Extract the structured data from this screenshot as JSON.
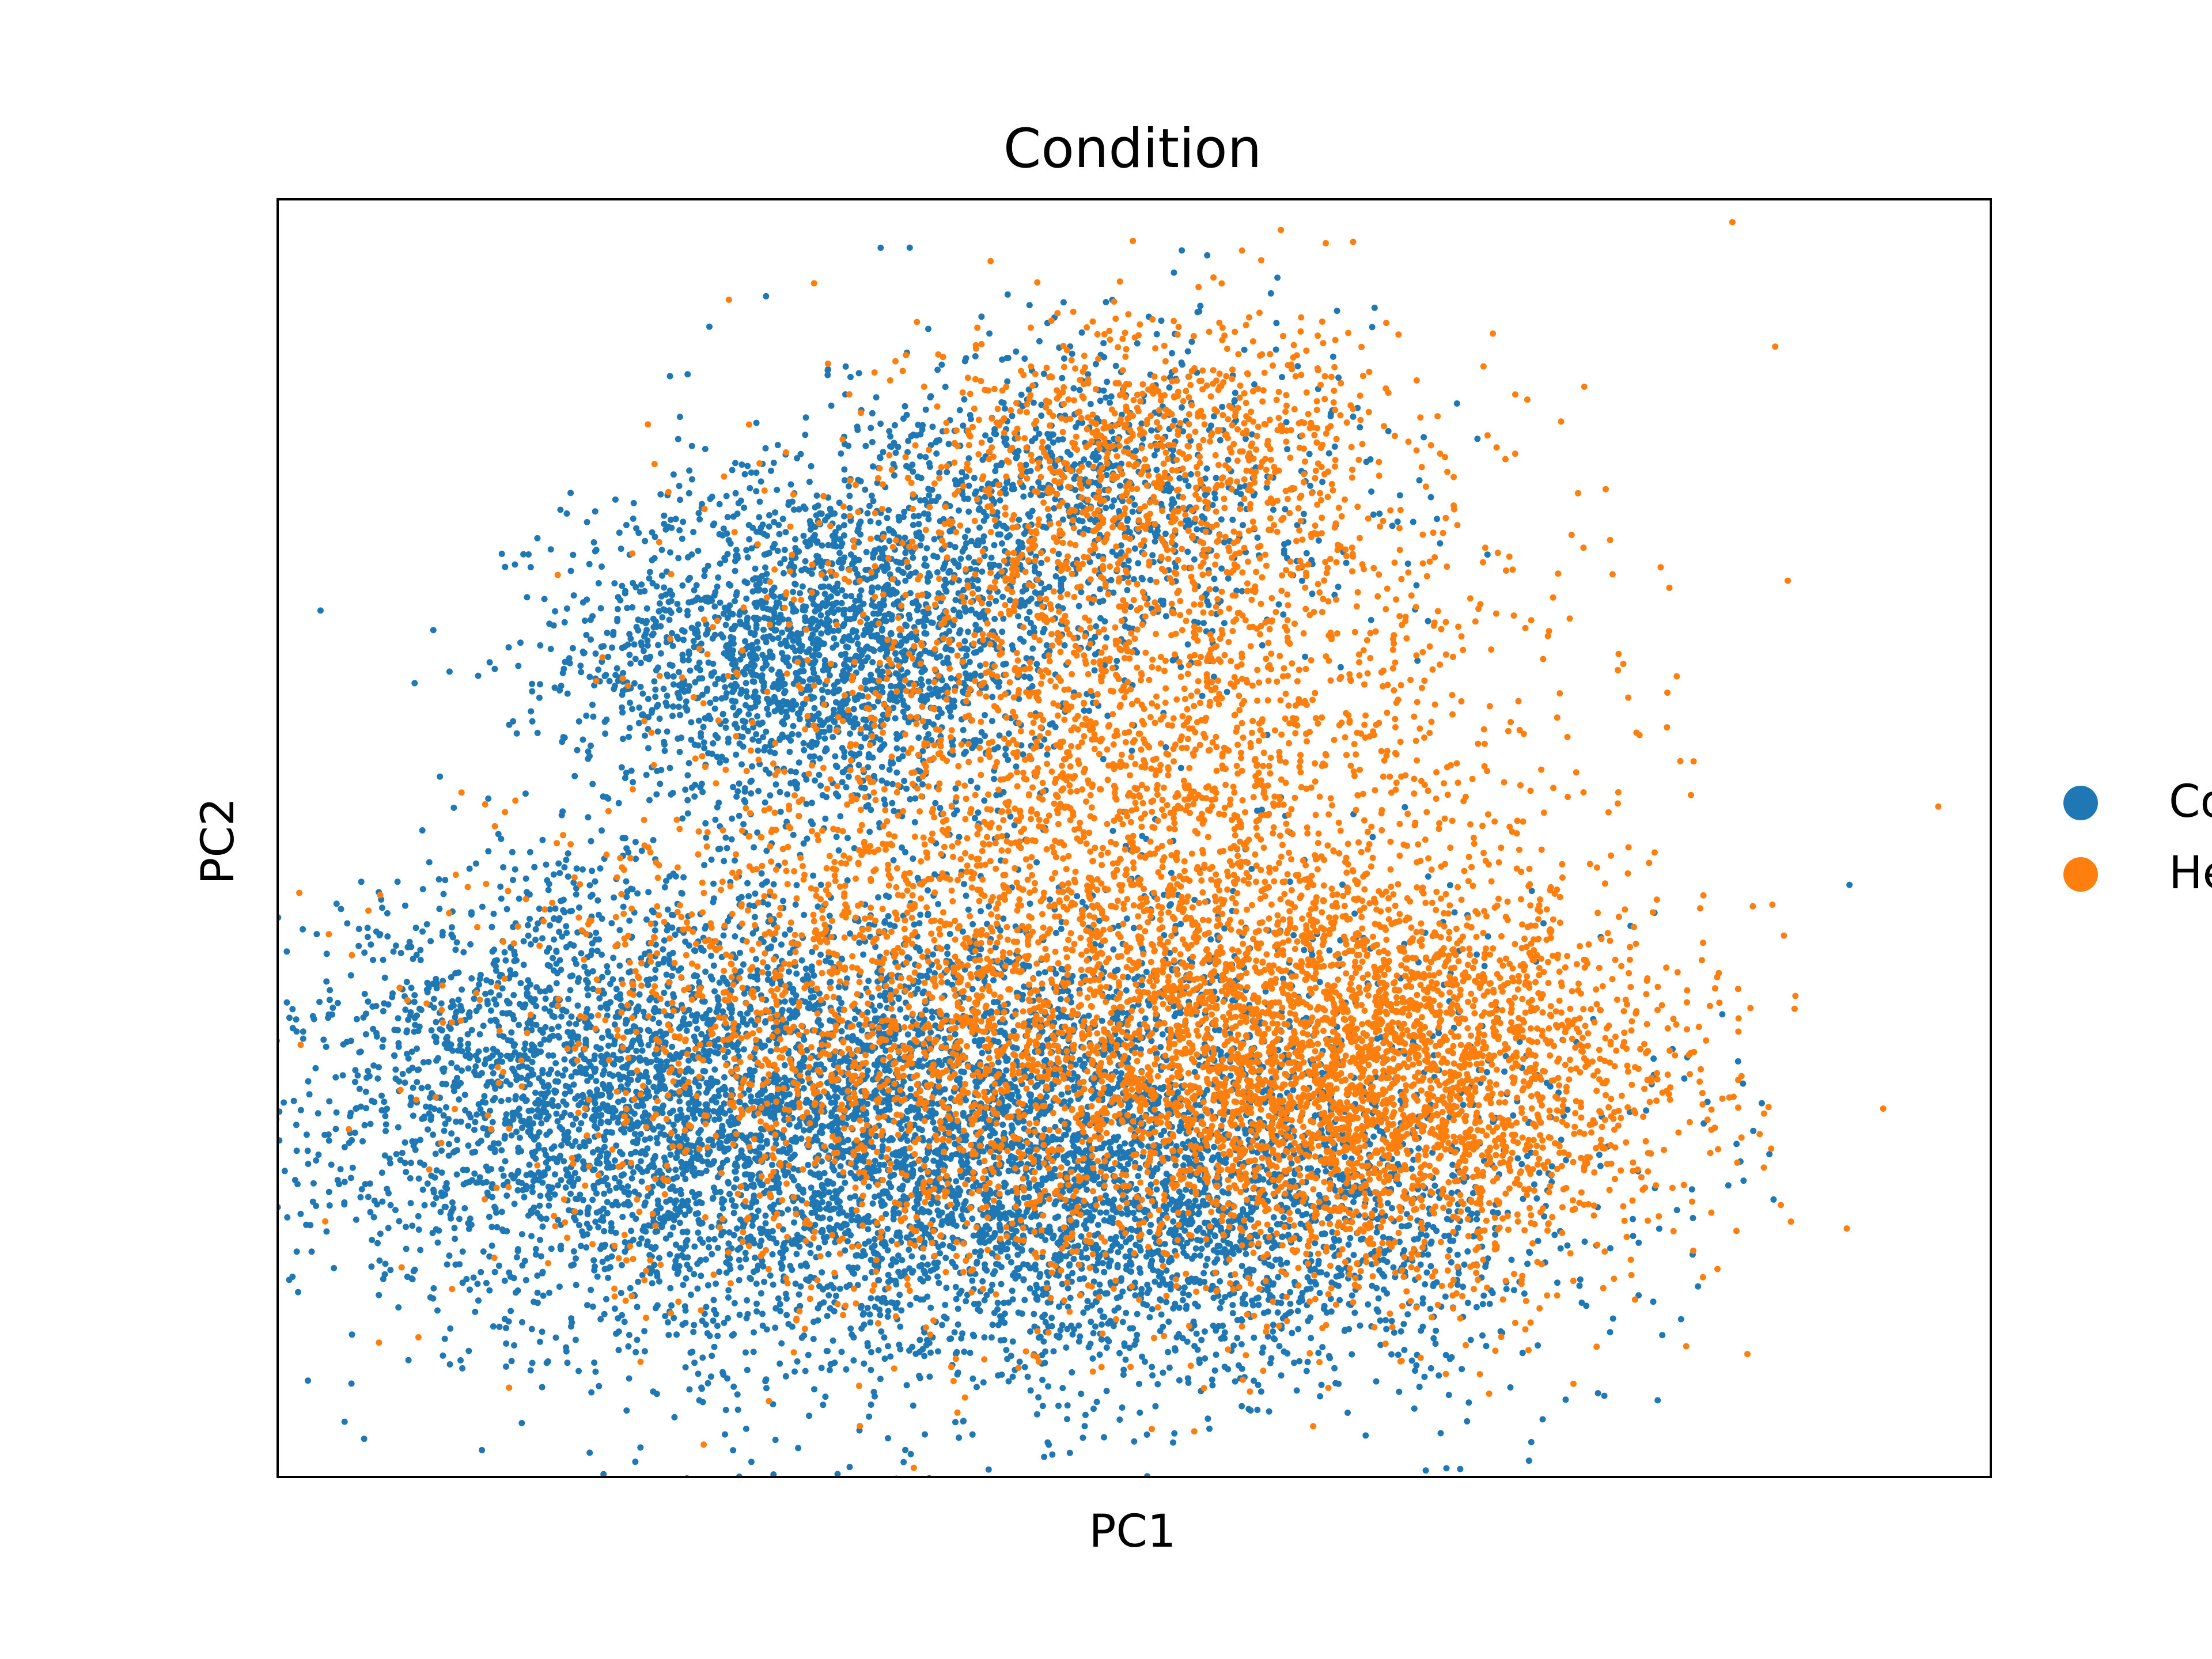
{
  "chart_data": {
    "type": "scatter",
    "title": "Condition",
    "xlabel": "PC1",
    "ylabel": "PC2",
    "xticks": [],
    "yticks": [],
    "grid": false,
    "legend_placement": "right",
    "xlim": [
      -6.5,
      11.5
    ],
    "ylim": [
      -6.5,
      8.5
    ],
    "series": [
      {
        "name": "Co",
        "color": "#1f77b4",
        "clusters": [
          {
            "cx": -0.8,
            "cy": 3.2,
            "sx": 1.3,
            "sy": 1.0,
            "n": 2200
          },
          {
            "cx": 0.6,
            "cy": -2.6,
            "sx": 2.6,
            "sy": 1.4,
            "n": 5200
          },
          {
            "cx": -3.2,
            "cy": -1.8,
            "sx": 1.6,
            "sy": 1.2,
            "n": 1800
          },
          {
            "cx": 2.0,
            "cy": 5.0,
            "sx": 1.4,
            "sy": 1.0,
            "n": 1000
          },
          {
            "cx": 3.8,
            "cy": -3.6,
            "sx": 1.8,
            "sy": 0.9,
            "n": 900
          }
        ],
        "sample_points": [
          {
            "x": -5.8,
            "y": -3.3
          },
          {
            "x": -4.0,
            "y": 0.0
          },
          {
            "x": -1.8,
            "y": -6.0
          },
          {
            "x": 0.3,
            "y": -6.0
          },
          {
            "x": 3.0,
            "y": 7.9
          },
          {
            "x": 5.0,
            "y": 7.0
          },
          {
            "x": 7.5,
            "y": -4.8
          },
          {
            "x": 8.0,
            "y": -5.6
          },
          {
            "x": 6.8,
            "y": 0.0
          }
        ]
      },
      {
        "name": "He",
        "color": "#ff7f0e",
        "clusters": [
          {
            "cx": 5.0,
            "cy": -1.8,
            "sx": 1.6,
            "sy": 1.2,
            "n": 3200
          },
          {
            "cx": 2.5,
            "cy": 2.5,
            "sx": 2.0,
            "sy": 1.8,
            "n": 2200
          },
          {
            "cx": 0.8,
            "cy": -1.4,
            "sx": 2.3,
            "sy": 1.6,
            "n": 2600
          },
          {
            "cx": 2.8,
            "cy": 5.6,
            "sx": 1.2,
            "sy": 0.8,
            "n": 700
          }
        ],
        "sample_points": [
          {
            "x": 9.0,
            "y": 0.2
          },
          {
            "x": 8.6,
            "y": -2.4
          },
          {
            "x": 7.5,
            "y": 4.5
          },
          {
            "x": 4.8,
            "y": 8.0
          },
          {
            "x": -6.0,
            "y": -3.5
          },
          {
            "x": 8.2,
            "y": 2.9
          },
          {
            "x": 7.2,
            "y": -1.5
          }
        ]
      }
    ]
  }
}
